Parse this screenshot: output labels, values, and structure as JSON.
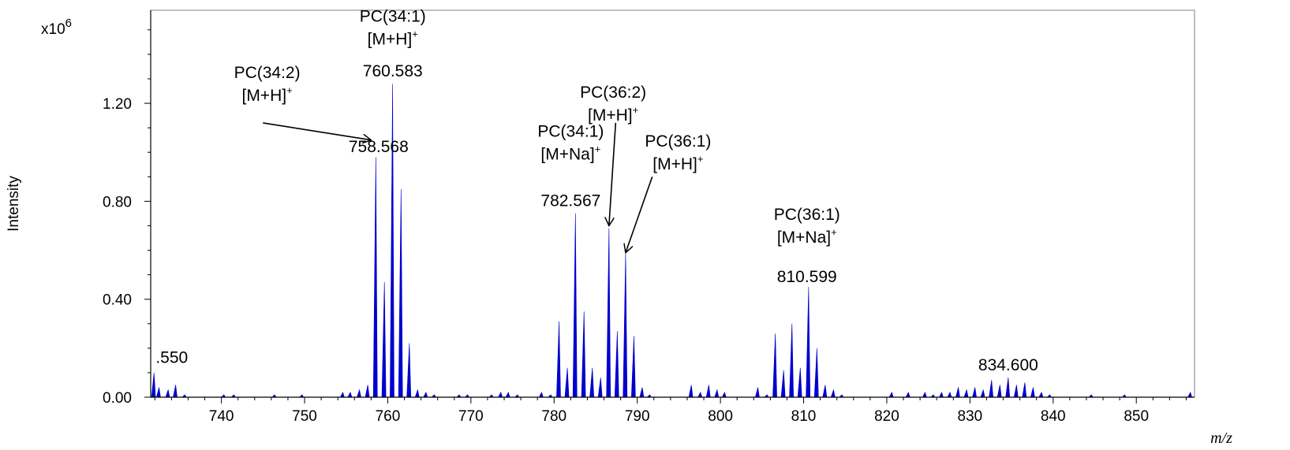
{
  "chart_data": {
    "type": "bar",
    "title": "",
    "xlabel": "m/z",
    "ylabel": "Intensity",
    "y_multiplier": "x10",
    "y_multiplier_exp": "6",
    "xlim": [
      731.5,
      857.0
    ],
    "ylim": [
      0,
      1.58
    ],
    "xticks": [
      740,
      750,
      760,
      770,
      780,
      790,
      800,
      810,
      820,
      830,
      840,
      850
    ],
    "yticks": [
      {
        "value": 0.0,
        "label": "0.00"
      },
      {
        "value": 0.4,
        "label": "0.40"
      },
      {
        "value": 0.8,
        "label": "0.80"
      },
      {
        "value": 1.2,
        "label": "1.20"
      }
    ],
    "color": "#0000cc",
    "peaks": [
      [
        731.9,
        0.1
      ],
      [
        732.5,
        0.04
      ],
      [
        733.6,
        0.03
      ],
      [
        734.5,
        0.05
      ],
      [
        735.6,
        0.01
      ],
      [
        740.3,
        0.01
      ],
      [
        741.5,
        0.01
      ],
      [
        746.4,
        0.01
      ],
      [
        749.7,
        0.01
      ],
      [
        754.6,
        0.02
      ],
      [
        755.5,
        0.02
      ],
      [
        756.6,
        0.03
      ],
      [
        757.6,
        0.05
      ],
      [
        758.568,
        0.98
      ],
      [
        759.6,
        0.47
      ],
      [
        760.583,
        1.28
      ],
      [
        761.6,
        0.85
      ],
      [
        762.6,
        0.22
      ],
      [
        763.6,
        0.03
      ],
      [
        764.6,
        0.02
      ],
      [
        765.6,
        0.01
      ],
      [
        768.6,
        0.01
      ],
      [
        769.6,
        0.01
      ],
      [
        772.5,
        0.01
      ],
      [
        773.6,
        0.02
      ],
      [
        774.5,
        0.02
      ],
      [
        775.6,
        0.01
      ],
      [
        778.5,
        0.02
      ],
      [
        779.6,
        0.01
      ],
      [
        780.6,
        0.31
      ],
      [
        781.6,
        0.12
      ],
      [
        782.567,
        0.75
      ],
      [
        783.6,
        0.35
      ],
      [
        784.6,
        0.12
      ],
      [
        785.6,
        0.08
      ],
      [
        786.6,
        0.69
      ],
      [
        787.6,
        0.27
      ],
      [
        788.6,
        0.59
      ],
      [
        789.6,
        0.25
      ],
      [
        790.6,
        0.04
      ],
      [
        791.5,
        0.01
      ],
      [
        796.5,
        0.05
      ],
      [
        797.6,
        0.02
      ],
      [
        798.6,
        0.05
      ],
      [
        799.6,
        0.03
      ],
      [
        800.5,
        0.02
      ],
      [
        804.5,
        0.04
      ],
      [
        805.6,
        0.01
      ],
      [
        806.6,
        0.26
      ],
      [
        807.6,
        0.11
      ],
      [
        808.6,
        0.3
      ],
      [
        809.6,
        0.12
      ],
      [
        810.599,
        0.45
      ],
      [
        811.6,
        0.2
      ],
      [
        812.6,
        0.05
      ],
      [
        813.6,
        0.03
      ],
      [
        814.6,
        0.01
      ],
      [
        820.6,
        0.02
      ],
      [
        822.6,
        0.02
      ],
      [
        824.6,
        0.02
      ],
      [
        825.6,
        0.01
      ],
      [
        826.6,
        0.02
      ],
      [
        827.6,
        0.02
      ],
      [
        828.6,
        0.04
      ],
      [
        829.6,
        0.03
      ],
      [
        830.6,
        0.04
      ],
      [
        831.6,
        0.03
      ],
      [
        832.6,
        0.07
      ],
      [
        833.6,
        0.05
      ],
      [
        834.6,
        0.08
      ],
      [
        835.6,
        0.05
      ],
      [
        836.6,
        0.06
      ],
      [
        837.6,
        0.04
      ],
      [
        838.6,
        0.02
      ],
      [
        839.6,
        0.01
      ],
      [
        844.6,
        0.01
      ],
      [
        848.6,
        0.01
      ],
      [
        856.5,
        0.02
      ]
    ],
    "annotations": [
      {
        "lines": [
          ".550"
        ],
        "x": 732.1,
        "y": 0.14,
        "align": "start",
        "va": "bottom"
      },
      {
        "lines": [
          "PC(34:2)",
          "[M+H]"
        ],
        "sup": "+",
        "x": 745.5,
        "y": 1.21,
        "align": "middle",
        "va": "bottom",
        "arrow_to": [
          758.0,
          1.05
        ],
        "arrow_from": [
          745.0,
          1.12
        ]
      },
      {
        "lines": [
          "758.568"
        ],
        "x": 758.9,
        "y": 1.0,
        "align": "middle",
        "va": "bottom"
      },
      {
        "lines": [
          "PC(34:1)",
          "[M+H]"
        ],
        "sup": "+",
        "x": 760.6,
        "y": 1.44,
        "align": "middle",
        "va": "bottom"
      },
      {
        "lines": [
          "760.583"
        ],
        "x": 760.6,
        "y": 1.31,
        "align": "middle",
        "va": "bottom"
      },
      {
        "lines": [
          "PC(34:1)",
          "[M+Na]"
        ],
        "sup": "+",
        "x": 782.0,
        "y": 0.97,
        "align": "middle",
        "va": "bottom"
      },
      {
        "lines": [
          "782.567"
        ],
        "x": 782.0,
        "y": 0.78,
        "align": "middle",
        "va": "bottom"
      },
      {
        "lines": [
          "PC(36:2)",
          "[M+H]"
        ],
        "sup": "+",
        "x": 787.1,
        "y": 1.13,
        "align": "middle",
        "va": "bottom",
        "arrow_to": [
          786.6,
          0.7
        ],
        "arrow_from": [
          787.4,
          1.12
        ]
      },
      {
        "lines": [
          "PC(36:1)",
          "[M+H]"
        ],
        "sup": "+",
        "x": 794.9,
        "y": 0.93,
        "align": "middle",
        "va": "bottom",
        "arrow_to": [
          788.6,
          0.59
        ],
        "arrow_from": [
          791.8,
          0.9
        ]
      },
      {
        "lines": [
          "PC(36:1)",
          "[M+Na]"
        ],
        "sup": "+",
        "x": 810.4,
        "y": 0.63,
        "align": "middle",
        "va": "bottom"
      },
      {
        "lines": [
          "810.599"
        ],
        "x": 810.4,
        "y": 0.47,
        "align": "middle",
        "va": "bottom"
      },
      {
        "lines": [
          "834.600"
        ],
        "x": 834.6,
        "y": 0.11,
        "align": "middle",
        "va": "bottom"
      }
    ]
  }
}
